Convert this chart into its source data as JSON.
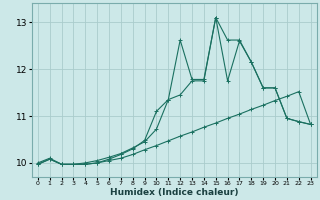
{
  "xlabel": "Humidex (Indice chaleur)",
  "bg_color": "#cce8e8",
  "line_color": "#1a7060",
  "grid_color": "#aacccc",
  "xlim": [
    -0.5,
    23.5
  ],
  "ylim": [
    9.7,
    13.4
  ],
  "yticks": [
    10,
    11,
    12,
    13
  ],
  "xticks": [
    0,
    1,
    2,
    3,
    4,
    5,
    6,
    7,
    8,
    9,
    10,
    11,
    12,
    13,
    14,
    15,
    16,
    17,
    18,
    19,
    20,
    21,
    22,
    23
  ],
  "series": [
    [
      9.97,
      10.08,
      9.97,
      9.97,
      9.97,
      10.0,
      10.05,
      10.1,
      10.18,
      10.28,
      10.37,
      10.47,
      10.57,
      10.66,
      10.76,
      10.85,
      10.95,
      11.04,
      11.14,
      11.23,
      11.33,
      11.42,
      11.52,
      10.82
    ],
    [
      10.0,
      10.1,
      9.97,
      9.97,
      10.0,
      10.05,
      10.12,
      10.2,
      10.32,
      10.45,
      10.72,
      11.35,
      11.45,
      11.75,
      11.75,
      13.1,
      11.75,
      12.6,
      12.15,
      11.6,
      11.6,
      10.95,
      10.88,
      10.82
    ],
    [
      9.97,
      10.08,
      9.97,
      9.97,
      9.97,
      10.0,
      10.08,
      10.18,
      10.3,
      10.48,
      11.1,
      11.35,
      12.62,
      11.78,
      11.78,
      13.1,
      12.62,
      12.62,
      12.15,
      11.6,
      11.6,
      10.95,
      10.88,
      10.82
    ]
  ]
}
